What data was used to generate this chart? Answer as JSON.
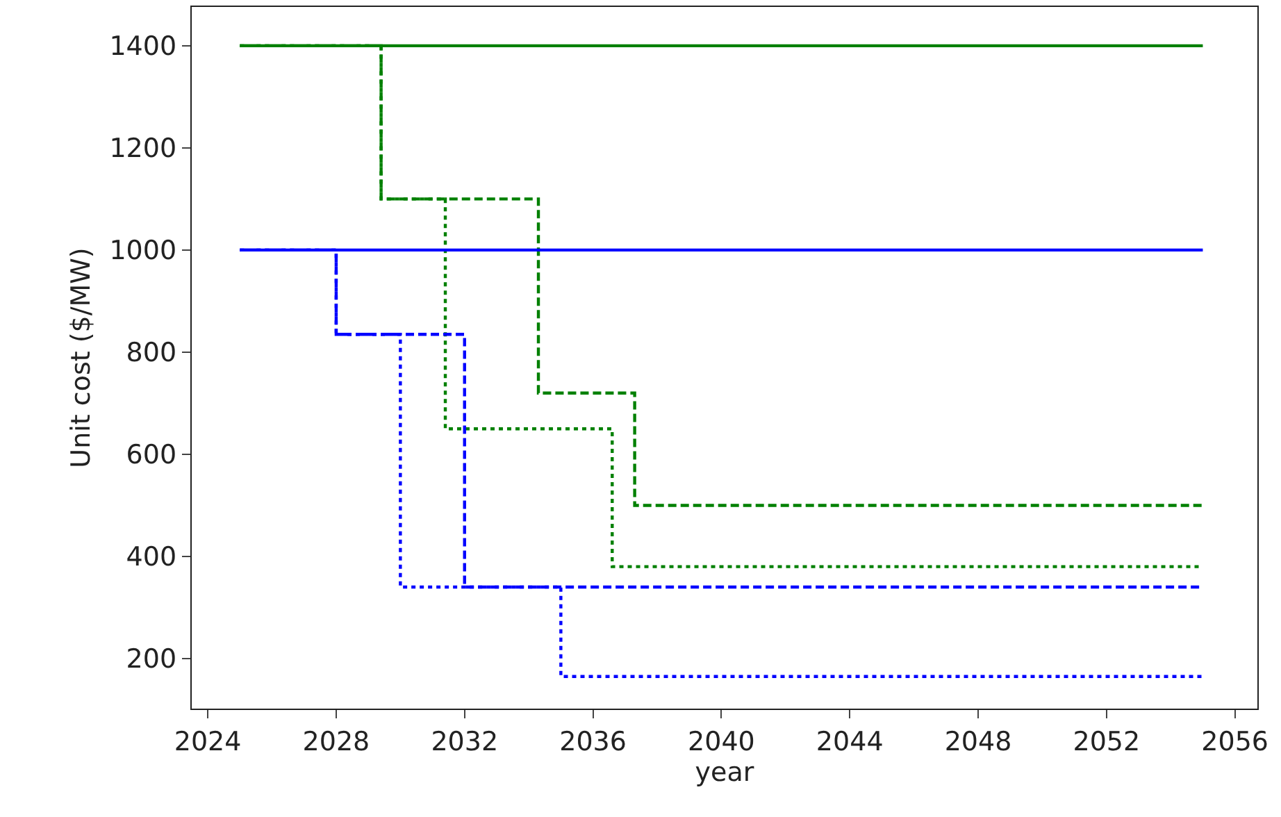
{
  "chart_data": {
    "type": "step",
    "xlabel": "year",
    "ylabel": "Unit cost ($/MW)",
    "xlim": [
      2023.5,
      2056.7
    ],
    "ylim": [
      102,
      1476
    ],
    "xticks": [
      2024,
      2028,
      2032,
      2036,
      2040,
      2044,
      2048,
      2052,
      2056
    ],
    "yticks": [
      200,
      400,
      600,
      800,
      1000,
      1200,
      1400
    ],
    "grid": false,
    "series": [
      {
        "color": "#008000",
        "line_style": "solid",
        "x": [
          2025,
          2055
        ],
        "values": [
          1400,
          1400
        ]
      },
      {
        "color": "#008000",
        "line_style": "dashed",
        "x": [
          2025,
          2029.4,
          2034.3,
          2037.3,
          2055
        ],
        "values": [
          1400,
          1100,
          720,
          500,
          500
        ]
      },
      {
        "color": "#008000",
        "line_style": "dotted",
        "x": [
          2025,
          2029.4,
          2031.4,
          2036.6,
          2055
        ],
        "values": [
          1400,
          1100,
          650,
          380,
          380
        ]
      },
      {
        "color": "#0000ff",
        "line_style": "solid",
        "x": [
          2025,
          2055
        ],
        "values": [
          1000,
          1000
        ]
      },
      {
        "color": "#0000ff",
        "line_style": "dashed",
        "x": [
          2025,
          2028,
          2032,
          2055
        ],
        "values": [
          1000,
          835,
          340,
          340
        ]
      },
      {
        "color": "#0000ff",
        "line_style": "dotted",
        "x": [
          2025,
          2028,
          2030,
          2035,
          2055
        ],
        "values": [
          1000,
          835,
          340,
          165,
          165
        ]
      }
    ]
  }
}
